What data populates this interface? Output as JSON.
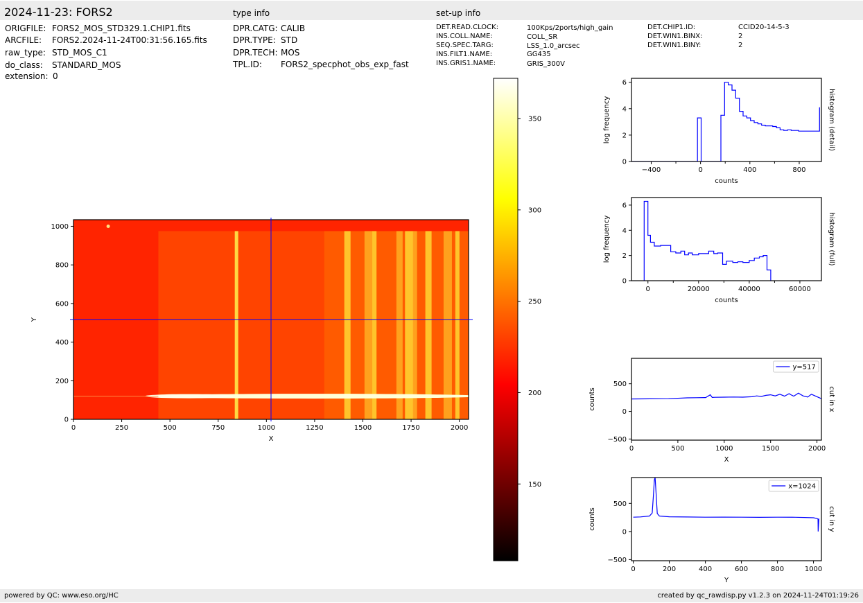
{
  "header": {
    "title": "2024-11-23: FORS2",
    "type_info_label": "type info",
    "setup_info_label": "set-up info"
  },
  "file_info": [
    {
      "key": "ORIGFILE:",
      "value": "FORS2_MOS_STD329.1.CHIP1.fits"
    },
    {
      "key": "ARCFILE:",
      "value": "FORS2.2024-11-24T00:31:56.165.fits"
    },
    {
      "key": "raw_type:",
      "value": "STD_MOS_C1"
    },
    {
      "key": "do_class:",
      "value": "STANDARD_MOS"
    },
    {
      "key": "extension:",
      "value": "0"
    }
  ],
  "type_info": [
    {
      "key": "DPR.CATG:",
      "value": "CALIB"
    },
    {
      "key": "DPR.TYPE:",
      "value": "STD"
    },
    {
      "key": "DPR.TECH:",
      "value": "MOS"
    },
    {
      "key": "TPL.ID:",
      "value": "FORS2_specphot_obs_exp_fast"
    }
  ],
  "setup_info_col1": [
    {
      "key": "DET.READ.CLOCK:",
      "value": "100Kps/2ports/high_gain"
    },
    {
      "key": "INS.COLL.NAME:",
      "value": "COLL_SR"
    },
    {
      "key": "SEQ.SPEC.TARG:",
      "value": "LSS_1.0_arcsec"
    },
    {
      "key": "INS.FILT1.NAME:",
      "value": "GG435"
    },
    {
      "key": "INS.GRIS1.NAME:",
      "value": "GRIS_300V"
    }
  ],
  "setup_info_col2": [
    {
      "key": "DET.CHIP1.ID:",
      "value": "CCID20-14-5-3"
    },
    {
      "key": "DET.WIN1.BINX:",
      "value": "2"
    },
    {
      "key": "DET.WIN1.BINY:",
      "value": "2"
    }
  ],
  "footer": {
    "left": "powered by QC: www.eso.org/HC",
    "right": "created by qc_rawdisp.py v1.2.3 on 2024-11-24T01:19:26"
  },
  "colors": {
    "band": "#ececec",
    "line": "#0000ff",
    "crosshair": "#0000ff"
  },
  "chart_data": [
    {
      "type": "heatmap",
      "name": "raw image",
      "xlabel": "X",
      "ylabel": "Y",
      "xlim": [
        0,
        2048
      ],
      "ylim": [
        0,
        1034
      ],
      "xticks": [
        0,
        250,
        500,
        750,
        1000,
        1250,
        1500,
        1750,
        2000
      ],
      "yticks": [
        0,
        200,
        400,
        600,
        800,
        1000
      ],
      "crosshair": {
        "x": 1024,
        "y": 517
      },
      "colormap": "hot",
      "colorbar_ticks": [
        150,
        200,
        250,
        300,
        350
      ],
      "colorbar_range": [
        108,
        372
      ],
      "bright_columns": [
        845,
        1420,
        1530,
        1560,
        1690,
        1740,
        1770,
        1840,
        1940,
        1990
      ],
      "spectrum_trace_y": 120
    },
    {
      "type": "line",
      "name": "histogram (detail)",
      "side_label": "histogram (detail)",
      "xlabel": "counts",
      "ylabel": "log frequency",
      "xlim": [
        -560,
        980
      ],
      "ylim": [
        0,
        6.3
      ],
      "xticks": [
        -400,
        0,
        400,
        800
      ],
      "xtick_extra": [
        -200,
        200,
        600
      ],
      "yticks": [
        0,
        2,
        4,
        6
      ],
      "step_x": [
        -560,
        -25,
        -25,
        5,
        5,
        165,
        165,
        195,
        195,
        225,
        225,
        255,
        255,
        285,
        285,
        315,
        315,
        345,
        345,
        375,
        375,
        405,
        405,
        435,
        435,
        465,
        465,
        495,
        495,
        525,
        525,
        555,
        555,
        585,
        585,
        615,
        615,
        645,
        645,
        675,
        675,
        705,
        705,
        735,
        735,
        765,
        765,
        795,
        795,
        825,
        825,
        855,
        855,
        885,
        885,
        915,
        915,
        945,
        945,
        965,
        965
      ],
      "step_y": [
        0,
        0,
        3.3,
        3.3,
        0,
        0,
        3.5,
        3.5,
        6.0,
        6.0,
        5.8,
        5.8,
        5.4,
        5.4,
        4.8,
        4.8,
        3.8,
        3.8,
        3.45,
        3.45,
        3.3,
        3.3,
        3.1,
        3.1,
        2.95,
        2.95,
        2.85,
        2.85,
        2.75,
        2.75,
        2.7,
        2.7,
        2.7,
        2.7,
        2.65,
        2.65,
        2.55,
        2.55,
        2.4,
        2.4,
        2.35,
        2.35,
        2.4,
        2.4,
        2.35,
        2.35,
        2.35,
        2.35,
        2.3,
        2.3,
        2.3,
        2.3,
        2.3,
        2.3,
        2.3,
        2.3,
        2.3,
        2.3,
        2.3,
        2.3,
        4.1
      ]
    },
    {
      "type": "line",
      "name": "histogram (full)",
      "side_label": "histogram (full)",
      "xlabel": "counts",
      "ylabel": "log frequency",
      "xlim": [
        -6500,
        68500
      ],
      "ylim": [
        0,
        6.6
      ],
      "xticks": [
        0,
        20000,
        40000,
        60000
      ],
      "xtick_extra": [
        10000,
        30000,
        50000
      ],
      "yticks": [
        0,
        2,
        4,
        6
      ],
      "step_x": [
        -1500,
        -1500,
        0,
        0,
        1000,
        1000,
        2500,
        2500,
        5000,
        5000,
        9000,
        9000,
        11000,
        11000,
        13000,
        13000,
        14500,
        14500,
        16000,
        16000,
        17500,
        17500,
        20000,
        20000,
        24000,
        24000,
        26000,
        26000,
        27500,
        27500,
        29500,
        29500,
        31000,
        31000,
        33500,
        33500,
        35500,
        35500,
        37500,
        37500,
        40000,
        40000,
        42000,
        42000,
        44000,
        44000,
        45500,
        45500,
        47000,
        47000,
        48500,
        48500
      ],
      "step_y": [
        0,
        6.3,
        6.3,
        3.6,
        3.6,
        3.05,
        3.05,
        2.75,
        2.75,
        2.8,
        2.8,
        2.3,
        2.3,
        2.2,
        2.2,
        2.35,
        2.35,
        2.05,
        2.05,
        2.2,
        2.2,
        2.05,
        2.05,
        2.15,
        2.15,
        2.35,
        2.35,
        2.15,
        2.15,
        2.2,
        2.2,
        1.3,
        1.3,
        1.55,
        1.55,
        1.45,
        1.45,
        1.5,
        1.5,
        1.45,
        1.45,
        1.6,
        1.6,
        1.8,
        1.8,
        1.9,
        1.9,
        2.0,
        2.0,
        0.85,
        0.85,
        0
      ]
    },
    {
      "type": "line",
      "name": "cut in x",
      "side_label": "cut in x",
      "xlabel": "X",
      "ylabel": "counts",
      "legend": "y=517",
      "legend_position": "top-right",
      "xlim": [
        0,
        2048
      ],
      "ylim": [
        -520,
        960
      ],
      "xticks": [
        0,
        500,
        1000,
        1500,
        2000
      ],
      "yticks": [
        -500,
        0,
        500
      ],
      "x": [
        0,
        200,
        400,
        500,
        600,
        700,
        800,
        850,
        870,
        900,
        1000,
        1100,
        1200,
        1300,
        1350,
        1400,
        1450,
        1500,
        1550,
        1600,
        1650,
        1700,
        1720,
        1750,
        1800,
        1850,
        1900,
        1940,
        1980,
        2048
      ],
      "y": [
        225,
        228,
        230,
        238,
        245,
        248,
        250,
        300,
        252,
        255,
        258,
        260,
        258,
        265,
        280,
        270,
        290,
        300,
        280,
        310,
        275,
        320,
        300,
        275,
        330,
        280,
        260,
        310,
        280,
        230
      ]
    },
    {
      "type": "line",
      "name": "cut in y",
      "side_label": "cut in y",
      "xlabel": "Y",
      "ylabel": "counts",
      "legend": "x=1024",
      "legend_position": "top-right",
      "xlim": [
        -10,
        1044
      ],
      "ylim": [
        -520,
        960
      ],
      "xticks": [
        0,
        200,
        400,
        600,
        800,
        1000
      ],
      "yticks": [
        -500,
        0,
        500
      ],
      "x": [
        0,
        40,
        90,
        105,
        112,
        117,
        121,
        126,
        133,
        145,
        200,
        300,
        400,
        500,
        600,
        700,
        800,
        900,
        950,
        1000,
        1020,
        1025,
        1026,
        1030
      ],
      "y": [
        255,
        260,
        275,
        330,
        650,
        920,
        960,
        700,
        320,
        275,
        262,
        258,
        255,
        256,
        254,
        252,
        255,
        253,
        250,
        245,
        230,
        220,
        0,
        230
      ]
    }
  ]
}
